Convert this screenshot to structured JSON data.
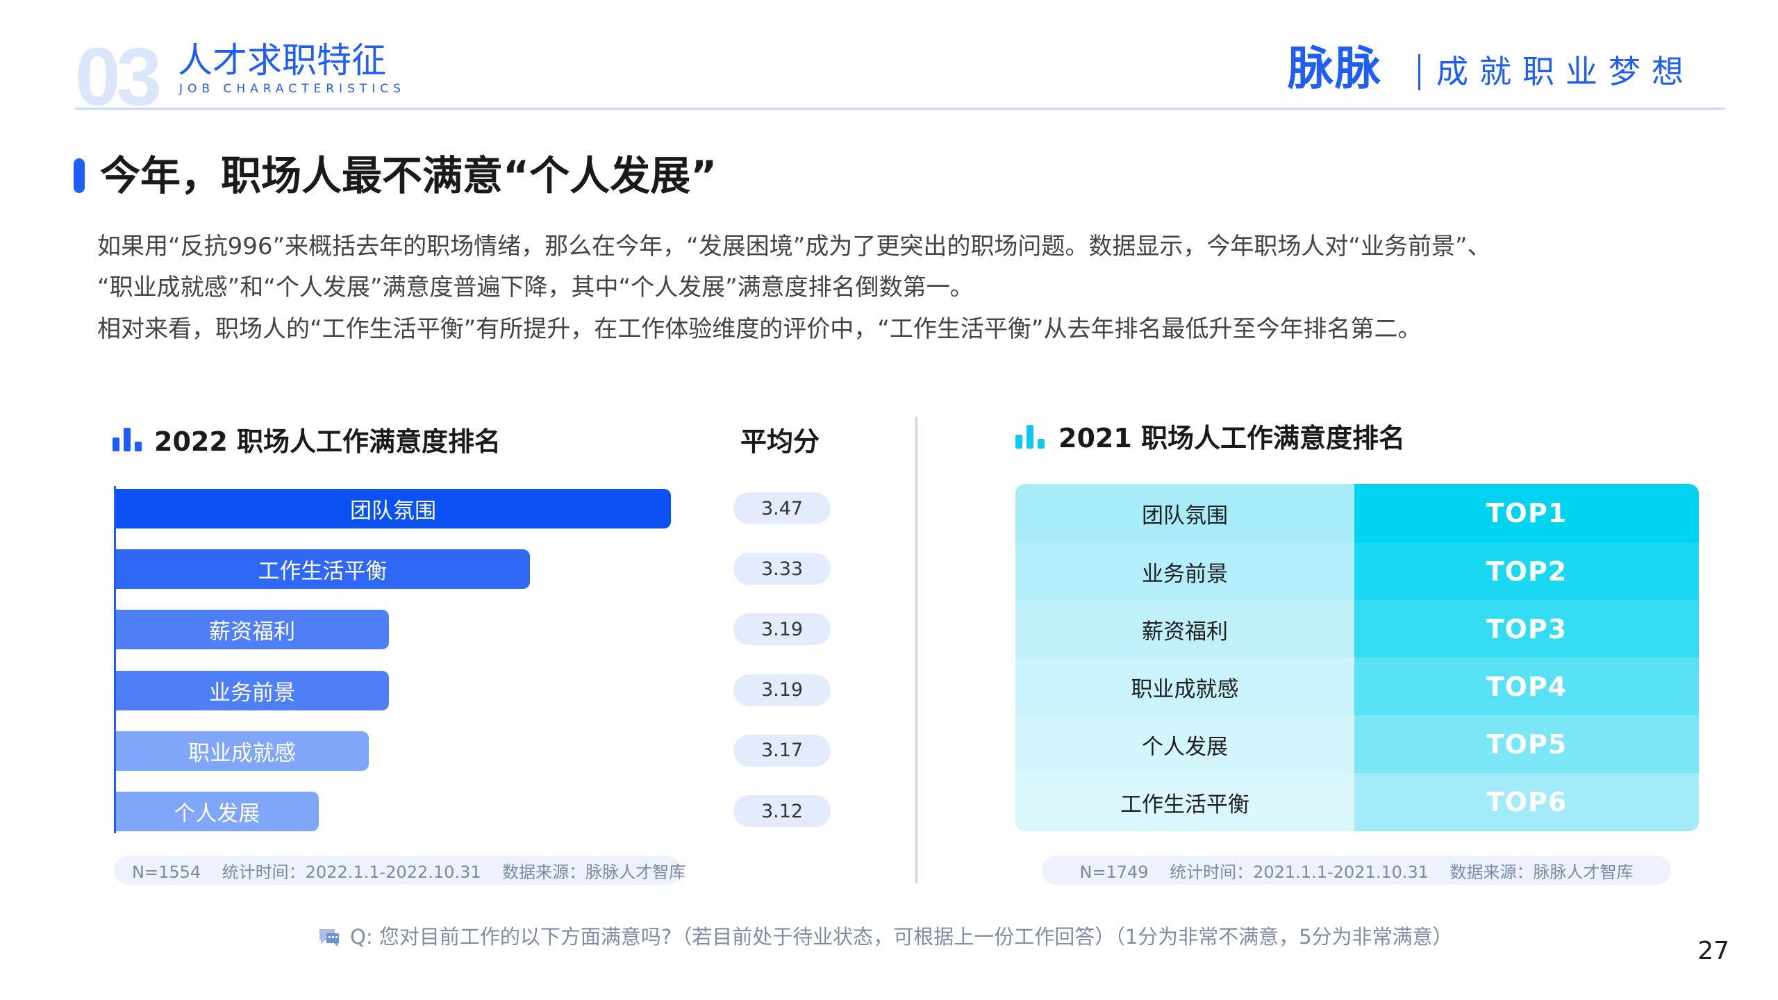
{
  "header": {
    "section_number": "03",
    "section_title": "人才求职特征",
    "section_subtitle": "JOB CHARACTERISTICS",
    "brand": "脉脉",
    "slogan": "成就职业梦想"
  },
  "main": {
    "heading": "今年，职场人最不满意“个人发展”",
    "paragraph_lines": [
      "如果用“反抗996”来概括去年的职场情绪，那么在今年，“发展困境”成为了更突出的职场问题。数据显示，今年职场人对“业务前景”、",
      "“职业成就感”和“个人发展”满意度普遍下降，其中“个人发展”满意度排名倒数第一。",
      "相对来看，职场人的“工作生活平衡”有所提升，在工作体验维度的评价中，“工作生活平衡”从去年排名最低升至今年排名第二。"
    ]
  },
  "left_panel": {
    "title": "2022 职场人工作满意度排名",
    "avg_title": "平均分",
    "note": "N=1554    统计时间：2022.1.1-2022.10.31    数据来源：脉脉人才智库",
    "icon_color": "#1e5ef5"
  },
  "right_panel": {
    "title": "2021 职场人工作满意度排名",
    "note": "N=1749    统计时间：2021.1.1-2021.10.31    数据来源：脉脉人才智库",
    "icon_color": "#0fc8ec",
    "rows": [
      {
        "label": "团队氛围",
        "rank": "TOP1",
        "label_bg": "#a8ecfa",
        "rank_bg": "#00d3ef"
      },
      {
        "label": "业务前景",
        "rank": "TOP2",
        "label_bg": "#b5eefb",
        "rank_bg": "#1ad8f1"
      },
      {
        "label": "薪资福利",
        "rank": "TOP3",
        "label_bg": "#c0f1fb",
        "rank_bg": "#34dcf3"
      },
      {
        "label": "职业成就感",
        "rank": "TOP4",
        "label_bg": "#caf3fc",
        "rank_bg": "#58e1f4"
      },
      {
        "label": "个人发展",
        "rank": "TOP5",
        "label_bg": "#d3f5fc",
        "rank_bg": "#7ae6f6"
      },
      {
        "label": "工作生活平衡",
        "rank": "TOP6",
        "label_bg": "#daf7fd",
        "rank_bg": "#a2ebf8"
      }
    ]
  },
  "chart_data": {
    "type": "bar",
    "orientation": "horizontal",
    "title": "2022 职场人工作满意度排名",
    "categories": [
      "团队氛围",
      "工作生活平衡",
      "薪资福利",
      "业务前景",
      "职业成就感",
      "个人发展"
    ],
    "values": [
      3.47,
      3.33,
      3.19,
      3.19,
      3.17,
      3.12
    ],
    "value_label_header": "平均分",
    "colors": [
      "#0b51f2",
      "#2f68f5",
      "#4f7ff6",
      "#4f7ff6",
      "#7fa6f9",
      "#7fa6f9"
    ]
  },
  "footer": {
    "question": "Q: 您对目前工作的以下方面满意吗?（若目前处于待业状态，可根据上一份工作回答）（1分为非常不满意，5分为非常满意）",
    "page_number": "27"
  }
}
